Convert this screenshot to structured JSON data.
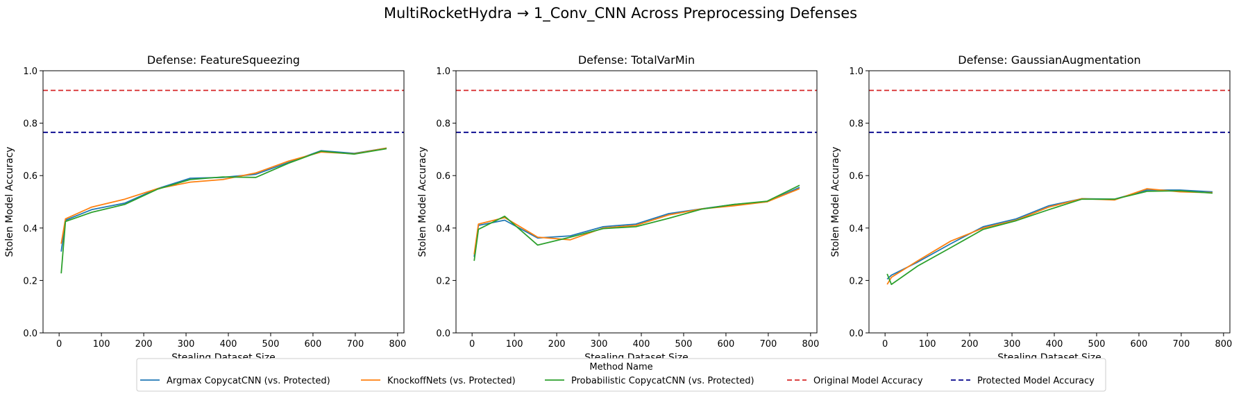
{
  "figure": {
    "title": "MultiRocketHydra → 1_Conv_CNN Across Preprocessing Defenses"
  },
  "legend": {
    "title": "Method Name",
    "placement": "bottom-center",
    "entries": [
      {
        "label": "Argmax CopycatCNN (vs. Protected)",
        "color": "#1f77b4",
        "style": "solid"
      },
      {
        "label": "KnockoffNets (vs. Protected)",
        "color": "#ff7f0e",
        "style": "solid"
      },
      {
        "label": "Probabilistic CopycatCNN (vs. Protected)",
        "color": "#2ca02c",
        "style": "solid"
      },
      {
        "label": "Original Model Accuracy",
        "color": "#d62728",
        "style": "dashed"
      },
      {
        "label": "Protected Model Accuracy",
        "color": "#00008b",
        "style": "dashed"
      }
    ]
  },
  "chart_data": [
    {
      "type": "line",
      "title": "Defense: FeatureSqueezing",
      "xlabel": "Stealing Dataset Size",
      "ylabel": "Stolen Model Accuracy",
      "xlim": [
        -38,
        815
      ],
      "ylim": [
        0,
        1.0
      ],
      "xticks": [
        0,
        100,
        200,
        300,
        400,
        500,
        600,
        700,
        800
      ],
      "yticks": [
        0.0,
        0.2,
        0.4,
        0.6,
        0.8,
        1.0
      ],
      "hlines": [
        {
          "name": "Original Model Accuracy",
          "y": 0.925,
          "color": "#d62728"
        },
        {
          "name": "Protected Model Accuracy",
          "y": 0.765,
          "color": "#00008b"
        }
      ],
      "series": [
        {
          "name": "Argmax CopycatCNN (vs. Protected)",
          "color": "#1f77b4",
          "x": [
            5,
            15,
            77,
            155,
            232,
            310,
            387,
            465,
            542,
            619,
            697,
            774
          ],
          "y": [
            0.31,
            0.43,
            0.47,
            0.495,
            0.55,
            0.59,
            0.593,
            0.605,
            0.65,
            0.695,
            0.685,
            0.705
          ]
        },
        {
          "name": "KnockoffNets (vs. Protected)",
          "color": "#ff7f0e",
          "x": [
            5,
            15,
            77,
            155,
            232,
            310,
            387,
            465,
            542,
            619,
            697,
            774
          ],
          "y": [
            0.34,
            0.435,
            0.48,
            0.51,
            0.55,
            0.575,
            0.585,
            0.61,
            0.655,
            0.69,
            0.683,
            0.705
          ]
        },
        {
          "name": "Probabilistic CopycatCNN (vs. Protected)",
          "color": "#2ca02c",
          "x": [
            5,
            15,
            77,
            155,
            232,
            310,
            387,
            465,
            542,
            619,
            697,
            774
          ],
          "y": [
            0.227,
            0.425,
            0.46,
            0.49,
            0.548,
            0.585,
            0.595,
            0.593,
            0.647,
            0.693,
            0.682,
            0.703
          ]
        }
      ]
    },
    {
      "type": "line",
      "title": "Defense: TotalVarMin",
      "xlabel": "Stealing Dataset Size",
      "ylabel": "Stolen Model Accuracy",
      "xlim": [
        -38,
        815
      ],
      "ylim": [
        0,
        1.0
      ],
      "xticks": [
        0,
        100,
        200,
        300,
        400,
        500,
        600,
        700,
        800
      ],
      "yticks": [
        0.0,
        0.2,
        0.4,
        0.6,
        0.8,
        1.0
      ],
      "hlines": [
        {
          "name": "Original Model Accuracy",
          "y": 0.925,
          "color": "#d62728"
        },
        {
          "name": "Protected Model Accuracy",
          "y": 0.765,
          "color": "#00008b"
        }
      ],
      "series": [
        {
          "name": "Argmax CopycatCNN (vs. Protected)",
          "color": "#1f77b4",
          "x": [
            5,
            15,
            77,
            155,
            232,
            310,
            387,
            465,
            542,
            619,
            697,
            774
          ],
          "y": [
            0.29,
            0.41,
            0.43,
            0.362,
            0.37,
            0.405,
            0.415,
            0.455,
            0.473,
            0.49,
            0.5,
            0.555
          ]
        },
        {
          "name": "KnockoffNets (vs. Protected)",
          "color": "#ff7f0e",
          "x": [
            5,
            15,
            77,
            155,
            232,
            310,
            387,
            465,
            542,
            619,
            697,
            774
          ],
          "y": [
            0.3,
            0.415,
            0.44,
            0.365,
            0.355,
            0.4,
            0.41,
            0.45,
            0.473,
            0.485,
            0.5,
            0.55
          ]
        },
        {
          "name": "Probabilistic CopycatCNN (vs. Protected)",
          "color": "#2ca02c",
          "x": [
            5,
            15,
            77,
            155,
            232,
            310,
            387,
            465,
            542,
            619,
            697,
            774
          ],
          "y": [
            0.275,
            0.395,
            0.445,
            0.335,
            0.365,
            0.398,
            0.405,
            0.437,
            0.472,
            0.49,
            0.502,
            0.563
          ]
        }
      ]
    },
    {
      "type": "line",
      "title": "Defense: GaussianAugmentation",
      "xlabel": "Stealing Dataset Size",
      "ylabel": "Stolen Model Accuracy",
      "xlim": [
        -38,
        815
      ],
      "ylim": [
        0,
        1.0
      ],
      "xticks": [
        0,
        100,
        200,
        300,
        400,
        500,
        600,
        700,
        800
      ],
      "yticks": [
        0.0,
        0.2,
        0.4,
        0.6,
        0.8,
        1.0
      ],
      "hlines": [
        {
          "name": "Original Model Accuracy",
          "y": 0.925,
          "color": "#d62728"
        },
        {
          "name": "Protected Model Accuracy",
          "y": 0.765,
          "color": "#00008b"
        }
      ],
      "series": [
        {
          "name": "Argmax CopycatCNN (vs. Protected)",
          "color": "#1f77b4",
          "x": [
            5,
            15,
            77,
            155,
            232,
            310,
            387,
            465,
            542,
            619,
            697,
            774
          ],
          "y": [
            0.205,
            0.22,
            0.27,
            0.34,
            0.405,
            0.435,
            0.485,
            0.512,
            0.51,
            0.545,
            0.545,
            0.538
          ]
        },
        {
          "name": "KnockoffNets (vs. Protected)",
          "color": "#ff7f0e",
          "x": [
            5,
            15,
            77,
            155,
            232,
            310,
            387,
            465,
            542,
            619,
            697,
            774
          ],
          "y": [
            0.185,
            0.212,
            0.275,
            0.35,
            0.4,
            0.43,
            0.48,
            0.512,
            0.507,
            0.55,
            0.538,
            0.535
          ]
        },
        {
          "name": "Probabilistic CopycatCNN (vs. Protected)",
          "color": "#2ca02c",
          "x": [
            5,
            15,
            77,
            155,
            232,
            310,
            387,
            465,
            542,
            619,
            697,
            774
          ],
          "y": [
            0.225,
            0.185,
            0.255,
            0.325,
            0.395,
            0.428,
            0.47,
            0.51,
            0.51,
            0.54,
            0.542,
            0.533
          ]
        }
      ]
    }
  ]
}
